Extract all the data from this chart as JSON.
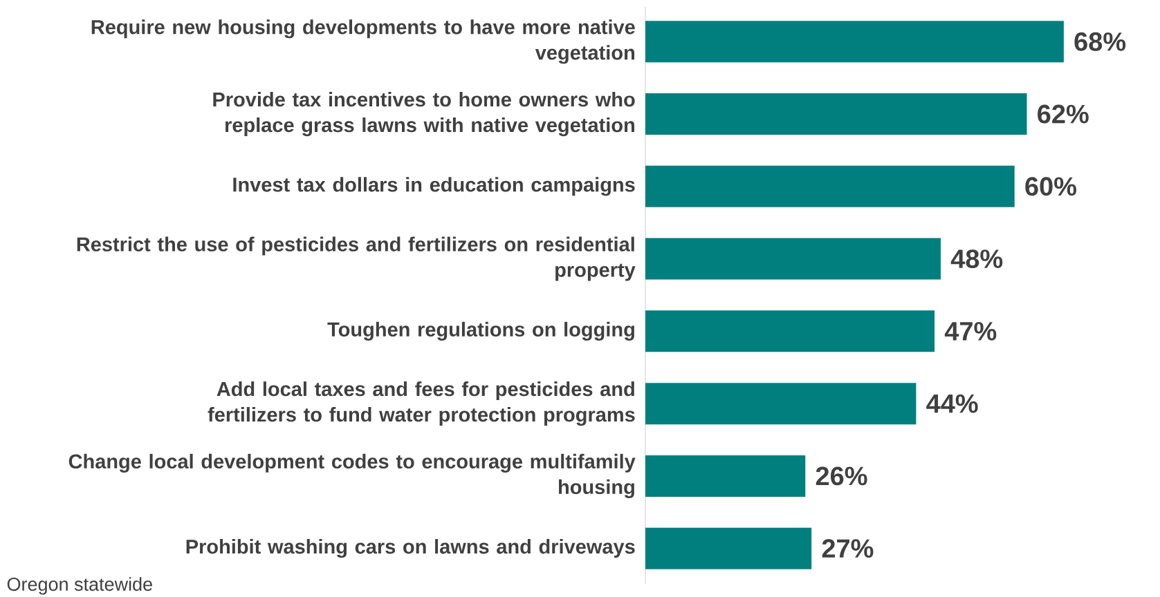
{
  "chart_data": {
    "type": "bar",
    "orientation": "horizontal",
    "categories": [
      "Require new housing developments to have more native vegetation",
      "Provide tax incentives to home owners who replace grass lawns with native vegetation",
      "Invest tax dollars in education campaigns",
      "Restrict the use of pesticides and fertilizers on residential property",
      "Toughen regulations on logging",
      "Add local taxes and fees for pesticides and fertilizers to fund water protection programs",
      "Change local development codes to encourage multifamily housing",
      "Prohibit washing cars on lawns and driveways"
    ],
    "values": [
      68,
      62,
      60,
      48,
      47,
      44,
      26,
      27
    ],
    "value_labels": [
      "68%",
      "62%",
      "60%",
      "48%",
      "47%",
      "44%",
      "26%",
      "27%"
    ],
    "color": "#007f7f",
    "annotations": [
      "Oregon statewide"
    ]
  }
}
